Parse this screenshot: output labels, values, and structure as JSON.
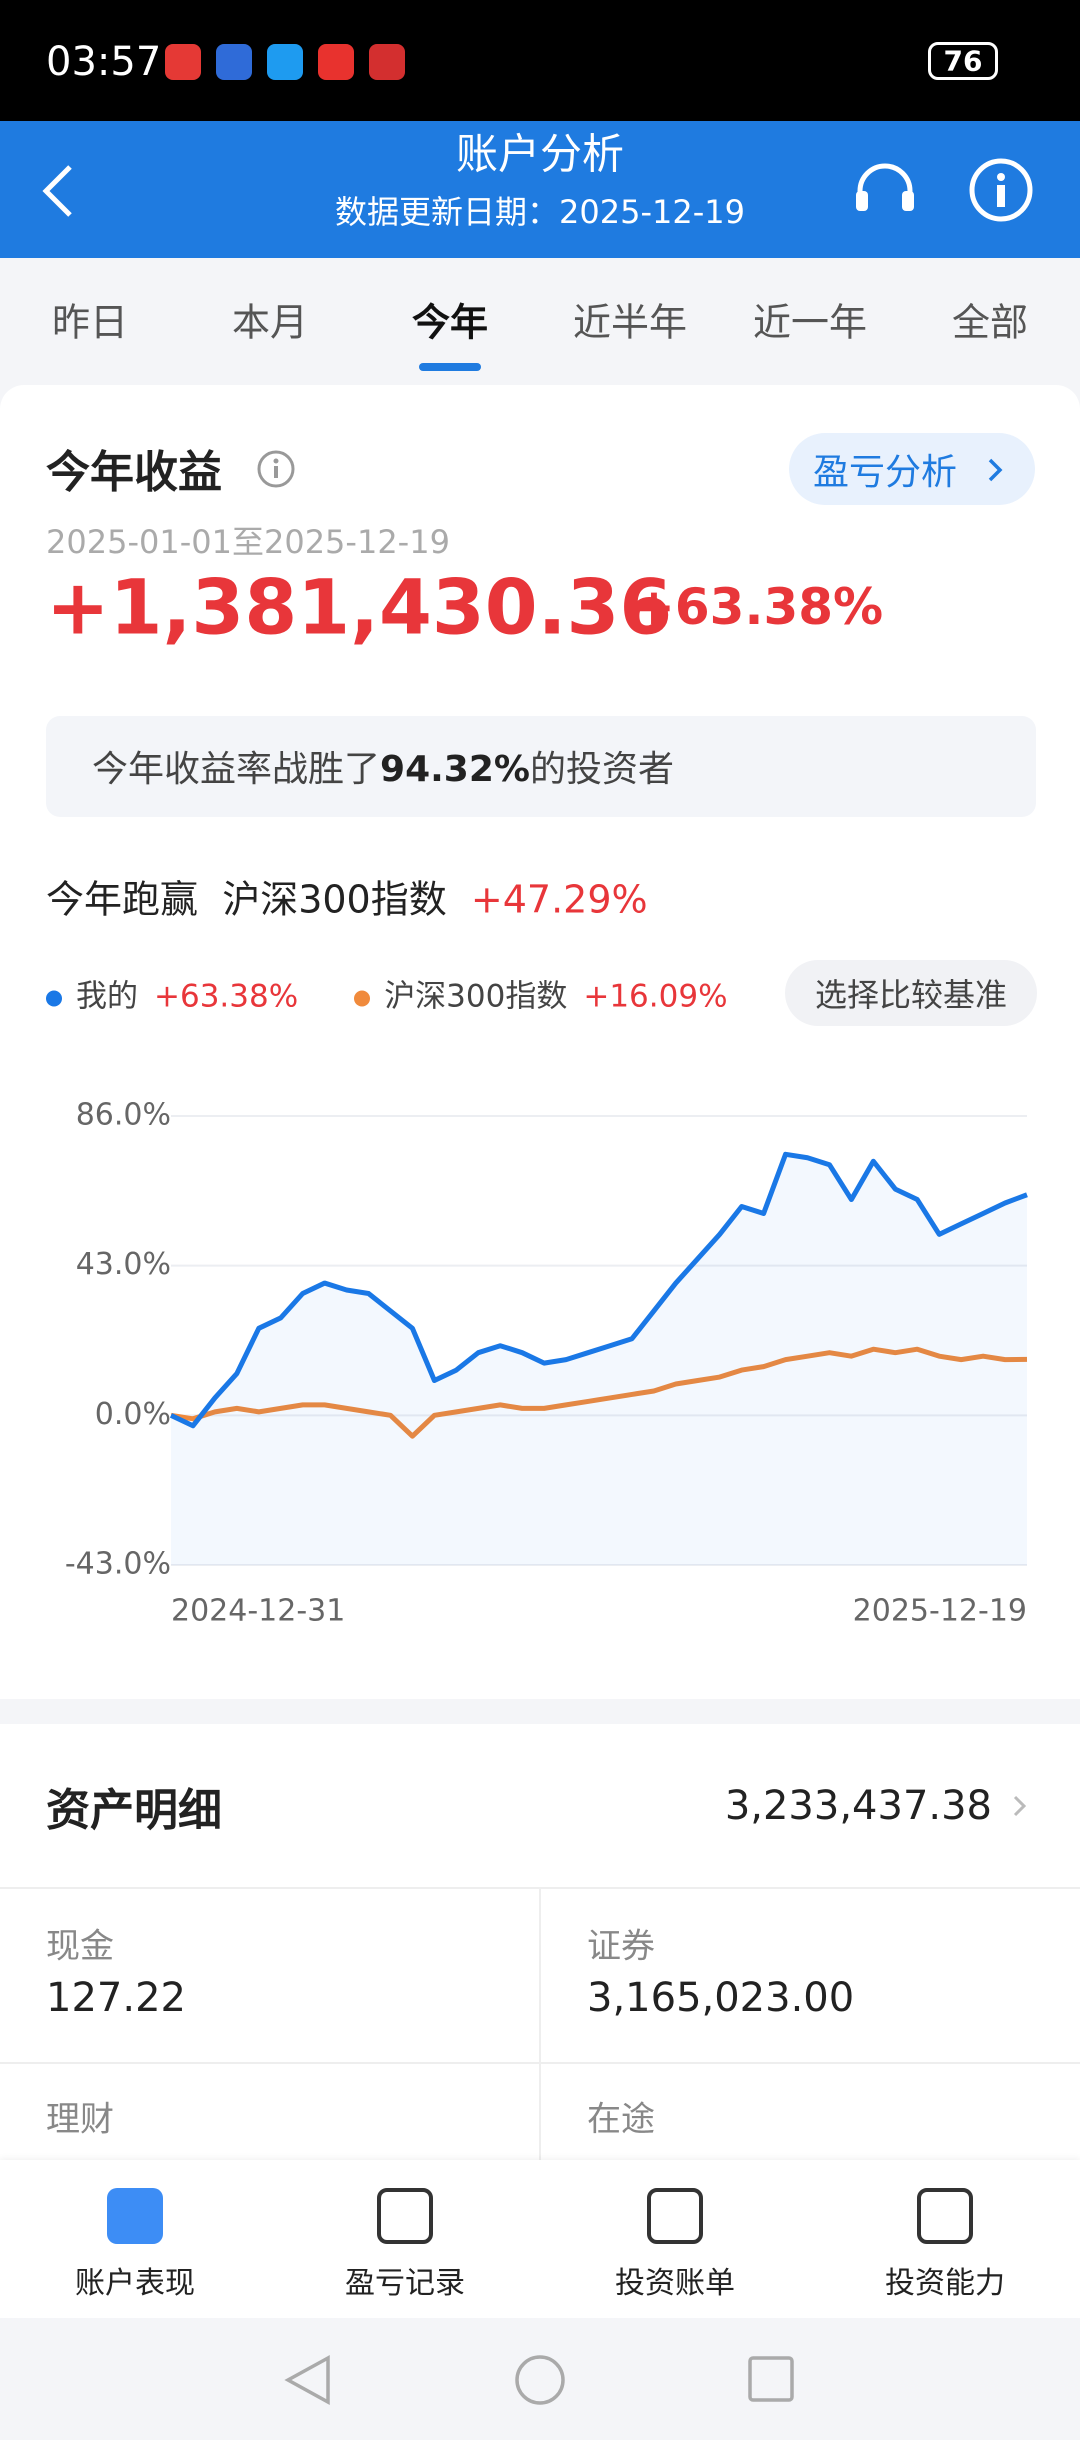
{
  "status_bar": {
    "time": "03:57",
    "battery": "76"
  },
  "header": {
    "title": "账户分析",
    "subtitle": "数据更新日期：2025-12-19"
  },
  "tabs": [
    "昨日",
    "本月",
    "今年",
    "近半年",
    "近一年",
    "全部"
  ],
  "summary": {
    "title": "今年收益",
    "button": "盈亏分析",
    "period": "2025-01-01至2025-12-19",
    "amount": "+1,381,430.36",
    "rate": "+63.38%"
  },
  "beat": {
    "prefix": "今年收益率战胜了",
    "value": "94.32%",
    "suffix": "的投资者"
  },
  "compare": {
    "label": "今年跑赢",
    "index": "沪深300指数",
    "value": "+47.29%",
    "button": "选择比较基准"
  },
  "chart_data": {
    "type": "line",
    "categories": [
      "2024-12-31",
      null,
      null,
      null,
      null,
      null,
      null,
      null,
      null,
      null,
      null,
      null,
      null,
      null,
      null,
      null,
      null,
      null,
      null,
      null,
      null,
      null,
      null,
      null,
      null,
      null,
      null,
      null,
      null,
      null,
      null,
      null,
      null,
      null,
      null,
      null,
      null,
      null,
      null,
      "2025-12-19"
    ],
    "series": [
      {
        "name": "我的",
        "legend_value": "+63.38%",
        "color": "#1a78e6",
        "values": [
          0,
          -3,
          5,
          12,
          25,
          28,
          35,
          38,
          36,
          35,
          30,
          25,
          10,
          13,
          18,
          20,
          18,
          15,
          16,
          18,
          20,
          22,
          30,
          38,
          45,
          52,
          60,
          58,
          75,
          74,
          72,
          62,
          73,
          65,
          62,
          52,
          55,
          58,
          61,
          63.38
        ]
      },
      {
        "name": "沪深300指数",
        "legend_value": "+16.09%",
        "color": "#f08a3c",
        "values": [
          0,
          -1,
          1,
          2,
          1,
          2,
          3,
          3,
          2,
          1,
          0,
          -6,
          0,
          1,
          2,
          3,
          2,
          2,
          3,
          4,
          5,
          6,
          7,
          9,
          10,
          11,
          13,
          14,
          16,
          17,
          18,
          17,
          19,
          18,
          19,
          17,
          16,
          17,
          16,
          16.09
        ]
      }
    ],
    "ylim": [
      -43,
      86
    ],
    "yticks": [
      {
        "value": 86,
        "label": "86.0%"
      },
      {
        "value": 43,
        "label": "43.0%"
      },
      {
        "value": 0,
        "label": "0.0%"
      },
      {
        "value": -43,
        "label": "-43.0%"
      }
    ],
    "grid": true,
    "area_under": "series.0"
  },
  "assets": {
    "title": "资产明细",
    "total": "3,233,437.38",
    "items": [
      {
        "label": "现金",
        "value": "127.22"
      },
      {
        "label": "证券",
        "value": "3,165,023.00"
      },
      {
        "label": "理财"
      },
      {
        "label": "在途"
      }
    ]
  },
  "bottom_nav": [
    "账户表现",
    "盈亏记录",
    "投资账单",
    "投资能力"
  ]
}
